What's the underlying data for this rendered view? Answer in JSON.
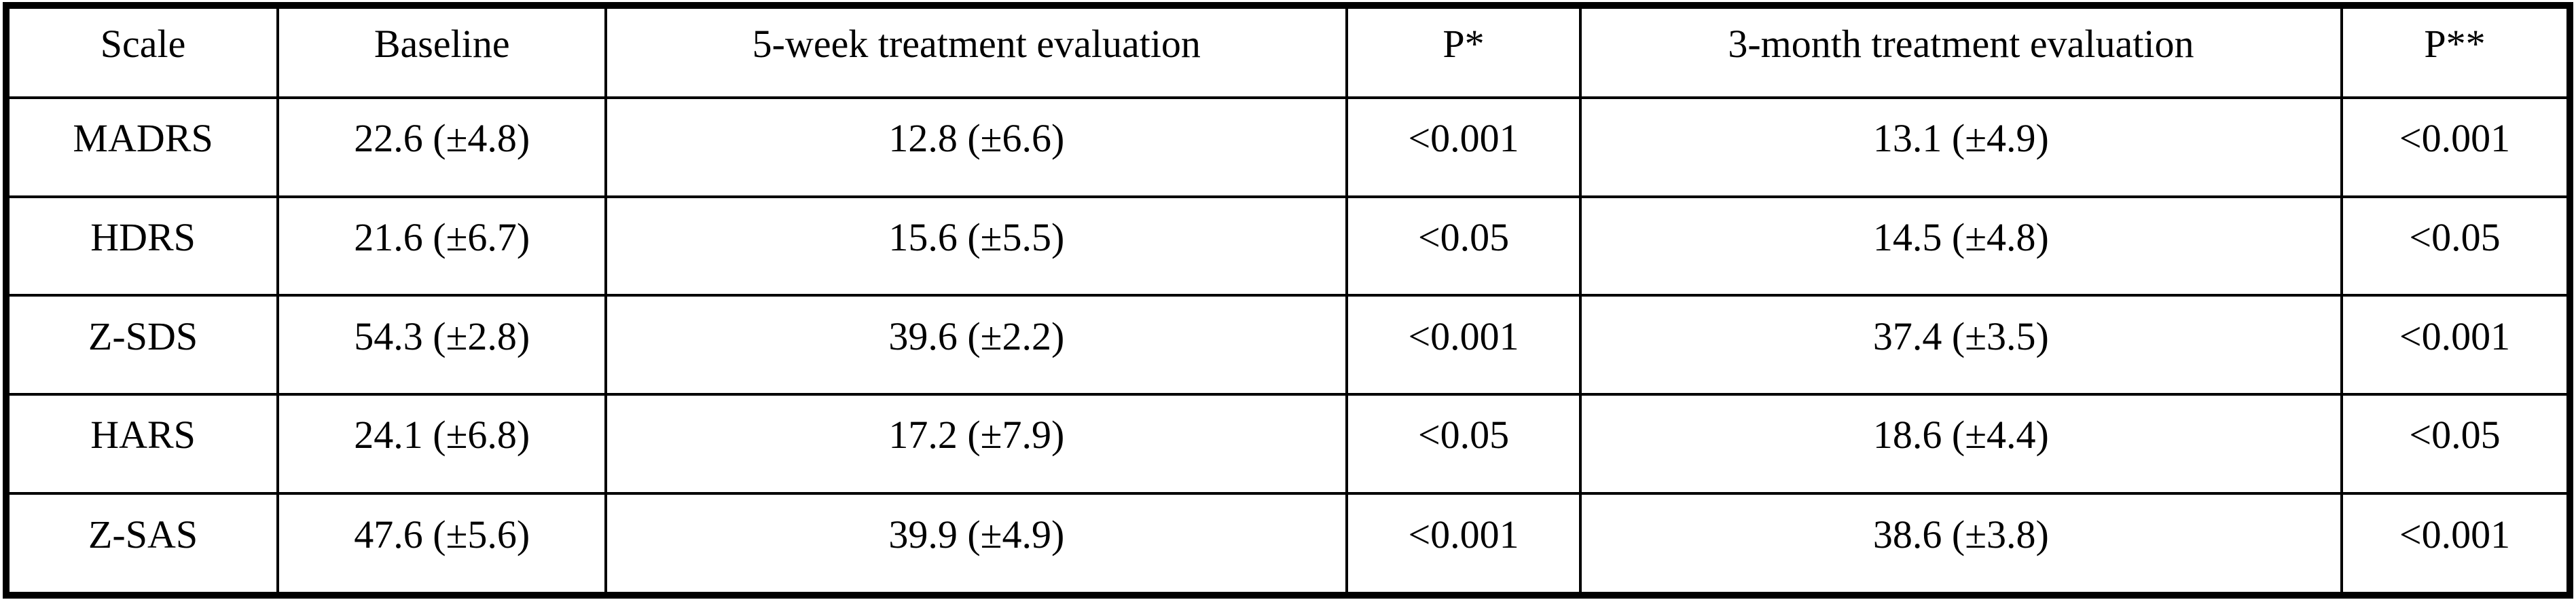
{
  "table": {
    "columns": [
      "Scale",
      "Baseline",
      "5-week treatment evaluation",
      "P*",
      "3-month treatment evaluation",
      "P**"
    ],
    "rows": [
      [
        "MADRS",
        "22.6 (±4.8)",
        "12.8 (±6.6)",
        "<0.001",
        "13.1 (±4.9)",
        "<0.001"
      ],
      [
        "HDRS",
        "21.6 (±6.7)",
        "15.6 (±5.5)",
        "<0.05",
        "14.5 (±4.8)",
        "<0.05"
      ],
      [
        "Z-SDS",
        "54.3 (±2.8)",
        "39.6 (±2.2)",
        "<0.001",
        "37.4 (±3.5)",
        "<0.001"
      ],
      [
        "HARS",
        "24.1 (±6.8)",
        "17.2 (±7.9)",
        "<0.05",
        "18.6 (±4.4)",
        "<0.05"
      ],
      [
        "Z-SAS",
        "47.6 (±5.6)",
        "39.9 (±4.9)",
        "<0.001",
        "38.6 (±3.8)",
        "<0.001"
      ]
    ],
    "colors": {
      "border": "#000000",
      "text": "#000000",
      "background": "#ffffff"
    }
  }
}
